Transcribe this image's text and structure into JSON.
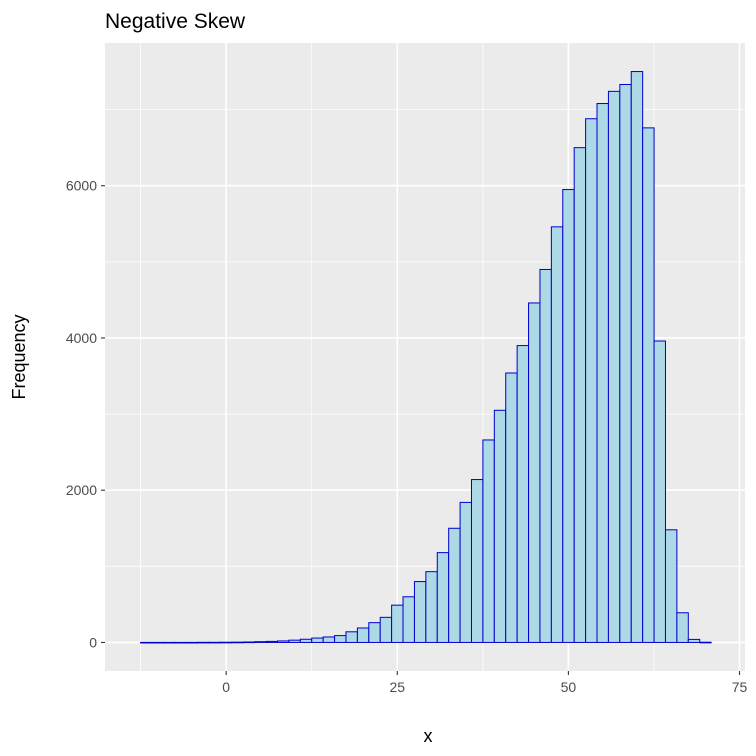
{
  "chart_data": {
    "type": "bar",
    "subtype": "histogram",
    "title": "Negative Skew",
    "xlabel": "x",
    "ylabel": "Frequency",
    "xlim": [
      -17.7,
      75.8
    ],
    "ylim": [
      -375,
      7875
    ],
    "x_ticks": [
      0,
      25,
      50,
      75
    ],
    "y_ticks": [
      0,
      2000,
      4000,
      6000
    ],
    "grid": true,
    "bin_width": 1.667,
    "bin_start": -12.5,
    "fill_color": "#ADD8E6",
    "edge_color": "#0000CD",
    "values": [
      1,
      1,
      1,
      1,
      1,
      2,
      2,
      3,
      4,
      6,
      10,
      14,
      20,
      30,
      42,
      58,
      72,
      90,
      140,
      190,
      260,
      330,
      490,
      600,
      800,
      930,
      1180,
      1500,
      1840,
      2140,
      2660,
      3050,
      3540,
      3900,
      4460,
      4900,
      5460,
      5950,
      6500,
      6880,
      7080,
      7240,
      7330,
      7500,
      6760,
      3960,
      1480,
      390,
      40,
      3
    ]
  },
  "colors": {
    "panel_background": "#EBEBEB",
    "grid_major": "#FFFFFF",
    "tick_text": "#4D4D4D"
  }
}
